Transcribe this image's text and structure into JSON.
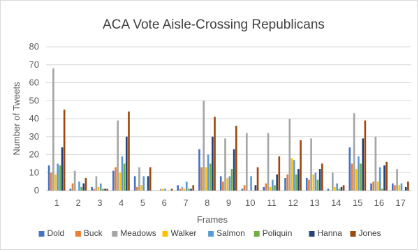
{
  "chart_data": {
    "type": "bar",
    "title": "ACA Vote Aisle-Crossing Republicans",
    "xlabel": "Frames",
    "ylabel": "Number of Tweets",
    "ylim": [
      0,
      80
    ],
    "yticks": [
      0,
      10,
      20,
      30,
      40,
      50,
      60,
      70,
      80
    ],
    "grid": true,
    "legend_position": "bottom",
    "categories": [
      "1",
      "2",
      "3",
      "4",
      "5",
      "6",
      "7",
      "8",
      "9",
      "10",
      "11",
      "12",
      "13",
      "14",
      "15",
      "16",
      "17"
    ],
    "series": [
      {
        "name": "Dold",
        "color": "#4472C4",
        "values": [
          14,
          1,
          2,
          11,
          8,
          0,
          3,
          23,
          8,
          1,
          2,
          7,
          7,
          1,
          24,
          4,
          4
        ]
      },
      {
        "name": "Buck",
        "color": "#ED7D31",
        "values": [
          10,
          4,
          1,
          13,
          2,
          0,
          1,
          13,
          5,
          3,
          4,
          9,
          6,
          0,
          15,
          5,
          3
        ]
      },
      {
        "name": "Meadows",
        "color": "#A5A5A5",
        "values": [
          68,
          11,
          8,
          39,
          13,
          1,
          2,
          50,
          29,
          32,
          32,
          40,
          29,
          10,
          43,
          30,
          12
        ]
      },
      {
        "name": "Walker",
        "color": "#FFC000",
        "values": [
          9,
          0,
          2,
          10,
          3,
          1,
          1,
          13,
          7,
          0,
          2,
          18,
          9,
          2,
          12,
          5,
          3
        ]
      },
      {
        "name": "Salmon",
        "color": "#5B9BD5",
        "values": [
          15,
          5,
          4,
          19,
          8,
          1,
          5,
          20,
          8,
          8,
          6,
          17,
          10,
          4,
          19,
          13,
          4
        ]
      },
      {
        "name": "Poliquin",
        "color": "#70AD47",
        "values": [
          14,
          2,
          1,
          15,
          0,
          0,
          1,
          15,
          12,
          0,
          3,
          9,
          6,
          1,
          15,
          1,
          0
        ]
      },
      {
        "name": "Hanna",
        "color": "#264478",
        "values": [
          24,
          4,
          1,
          30,
          8,
          0,
          1,
          30,
          23,
          3,
          9,
          12,
          12,
          2,
          29,
          14,
          2
        ]
      },
      {
        "name": "Jones",
        "color": "#9E480E",
        "values": [
          45,
          7,
          1,
          44,
          13,
          1,
          3,
          41,
          36,
          13,
          19,
          28,
          15,
          3,
          39,
          16,
          5
        ]
      }
    ]
  }
}
